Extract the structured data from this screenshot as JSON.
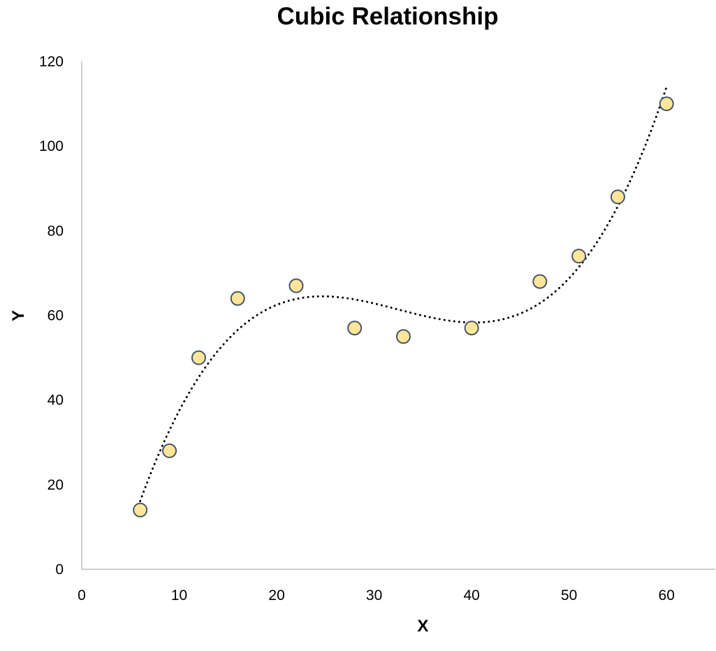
{
  "chart_data": {
    "type": "scatter",
    "title": "Cubic Relationship",
    "xlabel": "X",
    "ylabel": "Y",
    "xlim": [
      0,
      65
    ],
    "ylim": [
      0,
      120
    ],
    "xticks": [
      0,
      10,
      20,
      30,
      40,
      50,
      60
    ],
    "yticks": [
      0,
      20,
      40,
      60,
      80,
      100,
      120
    ],
    "grid": false,
    "legend": "none",
    "marker_color": "#ffe699",
    "marker_edge_color": "#44546a",
    "trendline": {
      "type": "polynomial",
      "order": 3,
      "style": "dotted",
      "color": "#000000"
    },
    "points": [
      {
        "x": 6,
        "y": 14
      },
      {
        "x": 9,
        "y": 28
      },
      {
        "x": 12,
        "y": 50
      },
      {
        "x": 16,
        "y": 64
      },
      {
        "x": 22,
        "y": 67
      },
      {
        "x": 28,
        "y": 57
      },
      {
        "x": 33,
        "y": 55
      },
      {
        "x": 40,
        "y": 57
      },
      {
        "x": 47,
        "y": 68
      },
      {
        "x": 51,
        "y": 74
      },
      {
        "x": 55,
        "y": 88
      },
      {
        "x": 60,
        "y": 110
      }
    ]
  }
}
